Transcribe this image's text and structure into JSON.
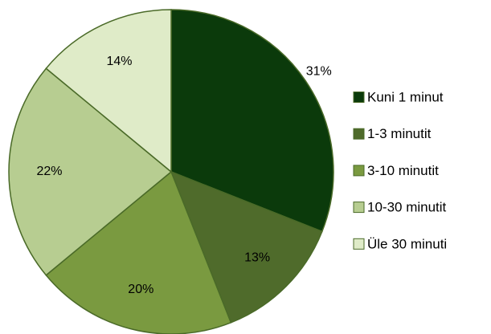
{
  "chart_data": {
    "type": "pie",
    "categories": [
      "Kuni 1 minut",
      "1-3 minutit",
      "3-10 minutit",
      "10-30 minutit",
      "Üle 30 minuti"
    ],
    "values": [
      31,
      13,
      20,
      22,
      14
    ],
    "value_labels": [
      "31%",
      "13%",
      "20%",
      "22%",
      "14%"
    ],
    "colors": [
      "#0b3a0b",
      "#4f6b2b",
      "#7a9a40",
      "#b7cd91",
      "#dfebc8"
    ],
    "legend": "right"
  }
}
